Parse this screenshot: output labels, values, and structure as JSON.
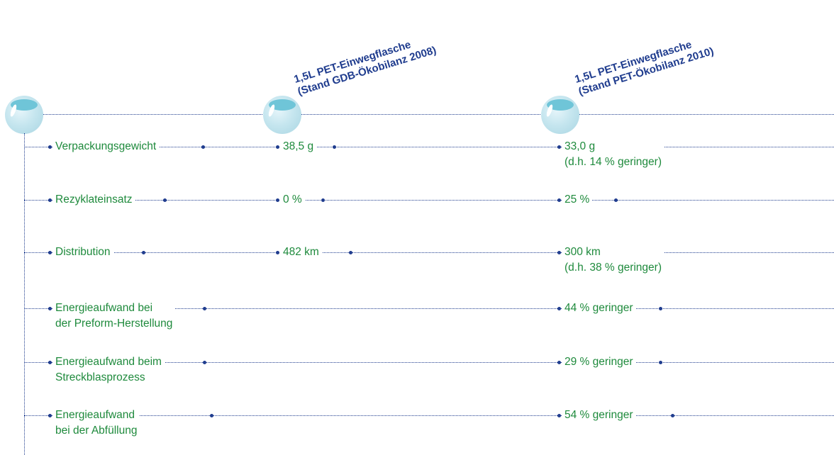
{
  "columns": [
    {
      "line1": "1,5L PET-Einwegflasche",
      "line2": "(Stand GDB-Ökobilanz 2008)"
    },
    {
      "line1": "1,5L PET-Einwegflasche",
      "line2": "(Stand PET-Ökobilanz 2010)"
    }
  ],
  "rows": [
    {
      "label": [
        "Verpackungsgewicht"
      ],
      "v2008": "38,5 g",
      "v2010": [
        "33,0 g",
        "(d.h. 14 % geringer)"
      ]
    },
    {
      "label": [
        "Rezyklateinsatz"
      ],
      "v2008": "0 %",
      "v2010": [
        "25 %"
      ]
    },
    {
      "label": [
        "Distribution"
      ],
      "v2008": "482 km",
      "v2010": [
        "300 km",
        "(d.h. 38 % geringer)"
      ]
    },
    {
      "label": [
        "Energieaufwand bei",
        "der Preform-Herstellung"
      ],
      "v2008": "",
      "v2010": [
        "44 % geringer"
      ]
    },
    {
      "label": [
        "Energieaufwand beim",
        "Streckblasprozess"
      ],
      "v2008": "",
      "v2010": [
        "29 % geringer"
      ]
    },
    {
      "label": [
        "Energieaufwand",
        "bei der Abfüllung"
      ],
      "v2008": "",
      "v2010": [
        "54 % geringer"
      ]
    }
  ],
  "colors": {
    "line": "#1f3c8e",
    "text": "#1e8a3c",
    "heading": "#1f3c8e"
  },
  "icons": [
    "bottle-bubble-icon"
  ]
}
